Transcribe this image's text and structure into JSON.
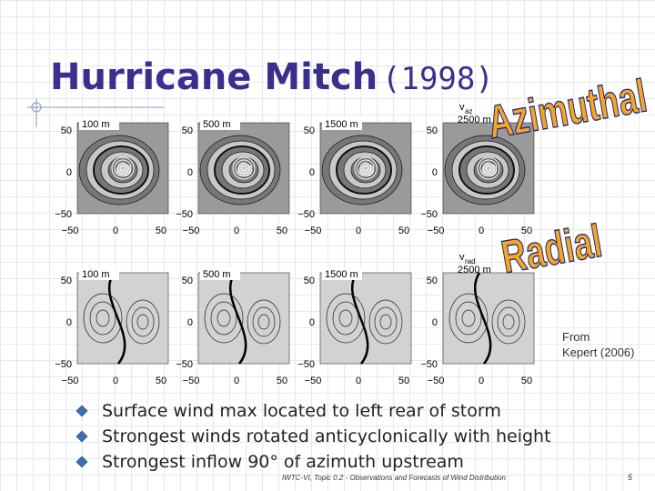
{
  "title": {
    "name": "Hurricane Mitch",
    "year": "(1998)"
  },
  "axes": {
    "yticks": [
      "50",
      "0",
      "−50"
    ],
    "xticks": [
      "−50",
      "0",
      "50"
    ]
  },
  "rows": [
    {
      "label": "Azimuthal",
      "panels": [
        "100 m",
        "500 m",
        "1500 m"
      ],
      "annotation": {
        "symbol": "v",
        "sub": "az",
        "height": "2500 m"
      }
    },
    {
      "label": "Radial",
      "panels": [
        "100 m",
        "500 m",
        "1500 m"
      ],
      "annotation": {
        "symbol": "v",
        "sub": "rad",
        "height": "2500 m"
      }
    }
  ],
  "source": [
    "From",
    "Kepert (2006)"
  ],
  "bullets": [
    "Surface wind max located to left rear of storm",
    "Strongest winds rotated anticyclonically with height",
    "Strongest inflow 90° of azimuth upstream"
  ],
  "footer": "IWTC-VI, Topic 0.2 - Observations and Forecasts of Wind Distribution",
  "page": "5"
}
